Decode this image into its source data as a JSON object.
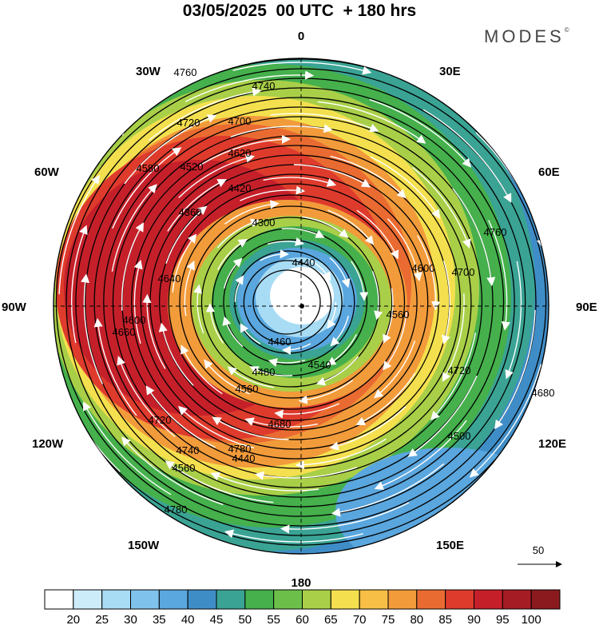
{
  "title": "03/05/2025  00 UTC  + 180 hrs",
  "brand": "MODES",
  "brand_mark": "©",
  "longitude_labels": {
    "north": "0",
    "south": "180",
    "east": "90E",
    "west": "90W",
    "ne30": "30E",
    "ne60": "60E",
    "se120": "120E",
    "se150": "150E",
    "nw30": "30W",
    "nw60": "60W",
    "sw120": "120W",
    "sw150": "150W"
  },
  "contour_labels": [
    "4760",
    "4740",
    "4720",
    "4700",
    "4620",
    "4580",
    "4520",
    "4420",
    "4360",
    "4300",
    "4440",
    "4460",
    "4480",
    "4540",
    "4560",
    "4600",
    "4640",
    "4660",
    "4680",
    "4780",
    "4500",
    "4560",
    "4600",
    "4700",
    "4720",
    "4740",
    "4760",
    "4780",
    "4680",
    "4560",
    "4440",
    "4720"
  ],
  "reference_vector": {
    "label": "50"
  },
  "colorbar": {
    "ticks": [
      "20",
      "25",
      "30",
      "35",
      "40",
      "45",
      "50",
      "55",
      "60",
      "65",
      "70",
      "75",
      "80",
      "85",
      "90",
      "95",
      "100"
    ],
    "colors": [
      "#ffffff",
      "#cdecfa",
      "#a8dcf5",
      "#7fc2eb",
      "#5aa6de",
      "#3f8dc7",
      "#3aa394",
      "#45b04c",
      "#6cc04a",
      "#a9cf48",
      "#f4e04e",
      "#f7bf45",
      "#f29b3b",
      "#ea6b31",
      "#de3b2d",
      "#c5202a",
      "#a61c24",
      "#8a1a1e"
    ]
  },
  "zone_colors": [
    "#ffffff",
    "#9fd4f1",
    "#4d96d2",
    "#2f9e8d",
    "#48b24a",
    "#a9cf48",
    "#f4e04e",
    "#f29b3b",
    "#e44b2e",
    "#c81f27"
  ]
}
